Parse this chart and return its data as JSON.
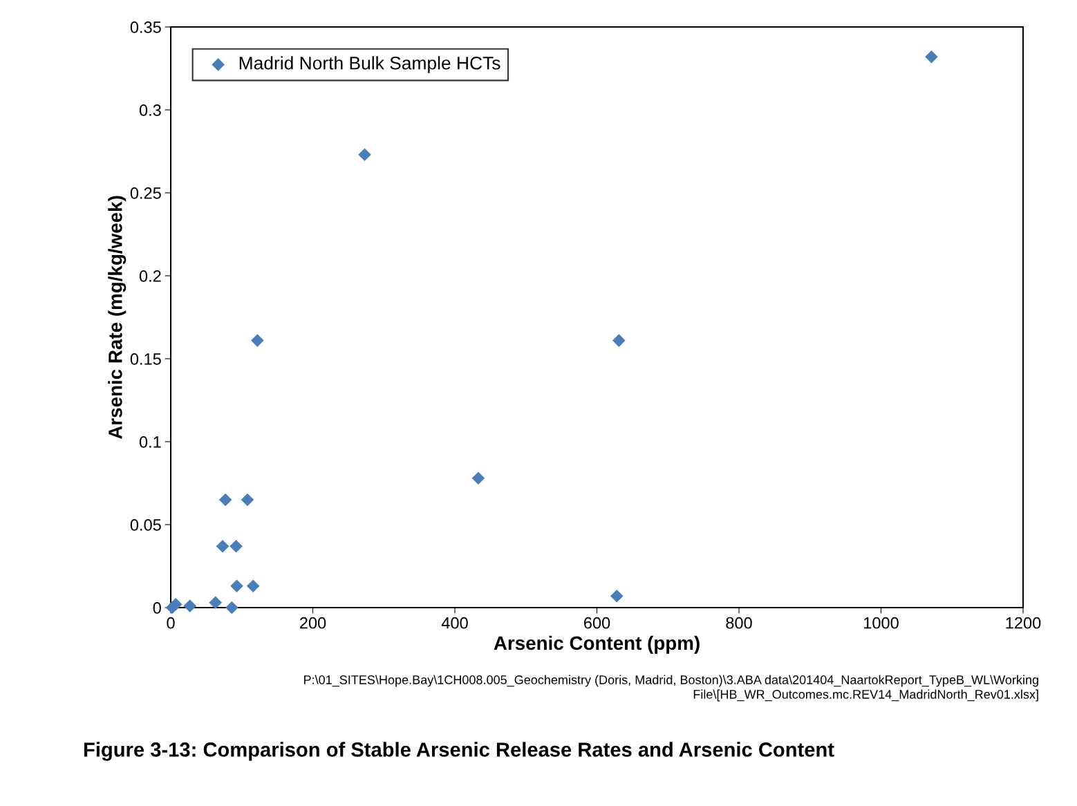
{
  "chart_data": {
    "type": "scatter",
    "title": "Figure 3-13: Comparison of Stable Arsenic Release Rates and Arsenic Content",
    "xlabel": "Arsenic Content (ppm)",
    "ylabel": "Arsenic Rate (mg/kg/week)",
    "annotations": [
      "P:\\01_SITES\\Hope.Bay\\1CH008.005_Geochemistry (Doris, Madrid, Boston)\\3.ABA data\\201404_NaartokReport_TypeB_WL\\Working",
      "File\\[HB_WR_Outcomes.mc.REV14_MadridNorth_Rev01.xlsx]"
    ],
    "series": [
      {
        "name": "Madrid North Bulk Sample HCTs",
        "color": "#4a7ebb",
        "x": [
          1071,
          273,
          122,
          631,
          433,
          77,
          108,
          73,
          92,
          93,
          116,
          628,
          63,
          86,
          27,
          7,
          2
        ],
        "values": [
          0.332,
          0.273,
          0.161,
          0.161,
          0.078,
          0.065,
          0.065,
          0.037,
          0.037,
          0.013,
          0.013,
          0.007,
          0.003,
          0.0,
          0.001,
          0.002,
          0.0
        ]
      }
    ],
    "xlim": [
      0,
      1200
    ],
    "xticks": [
      0,
      200,
      400,
      600,
      800,
      1000,
      1200
    ],
    "ylim": [
      0,
      0.35
    ],
    "yticks": [
      0,
      0.05,
      0.1,
      0.15,
      0.2,
      0.25,
      0.3,
      0.35
    ],
    "grid": false,
    "legend": "top left",
    "marker": "diamond"
  }
}
